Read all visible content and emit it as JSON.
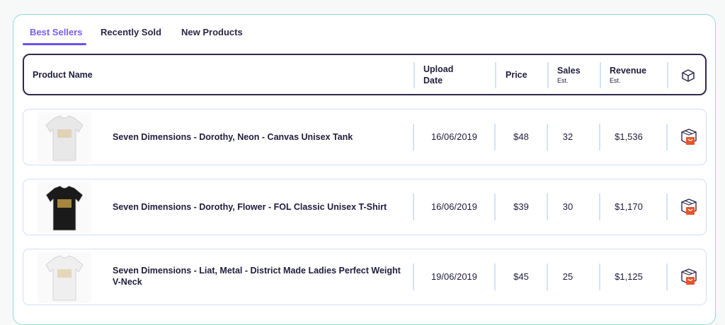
{
  "tabs": [
    {
      "label": "Best Sellers",
      "active": true
    },
    {
      "label": "Recently Sold"
    },
    {
      "label": "New Products"
    }
  ],
  "columns": {
    "product_name": "Product Name",
    "upload_date": "Upload Date",
    "price": "Price",
    "sales": "Sales",
    "sales_sub": "Est.",
    "revenue": "Revenue",
    "revenue_sub": "Est.",
    "action_icon": "box-icon"
  },
  "rows": [
    {
      "name": "Seven Dimensions - Dorothy, Neon - Canvas Unisex Tank",
      "date": "16/06/2019",
      "price": "$48",
      "sales": "32",
      "revenue": "$1,536",
      "shirt_color": "#e8e8e8"
    },
    {
      "name": "Seven Dimensions - Dorothy, Flower - FOL Classic Unisex T-Shirt",
      "date": "16/06/2019",
      "price": "$39",
      "sales": "30",
      "revenue": "$1,170",
      "shirt_color": "#1a1a1a"
    },
    {
      "name": "Seven Dimensions - Liat, Metal - District Made Ladies Perfect Weight V-Neck",
      "date": "19/06/2019",
      "price": "$45",
      "sales": "25",
      "revenue": "$1,125",
      "shirt_color": "#efefef"
    }
  ],
  "colors": {
    "accent": "#6a4ff0",
    "border": "#8fdccd",
    "bag": "#e8552a"
  }
}
